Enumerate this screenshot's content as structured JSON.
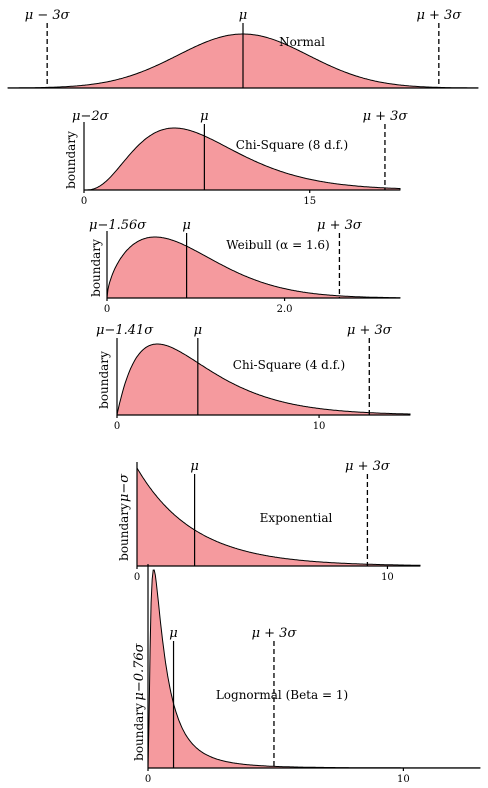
{
  "chart_data": [
    {
      "type": "area",
      "distribution": "normal",
      "title": "Normal",
      "lower_label": "μ − 3σ",
      "mean_label": "μ",
      "upper_label": "μ + 3σ",
      "side_label": "",
      "x_ticks": [],
      "colors": {
        "fill": "#f59a9e",
        "stroke": "#000000"
      }
    },
    {
      "type": "area",
      "distribution": "chisquare",
      "k": 8,
      "title": "Chi-Square (8 d.f.)",
      "lower_label": "μ−2σ",
      "mean_label": "μ",
      "upper_label": "μ + 3σ",
      "side_label": "boundary",
      "x_range": [
        0,
        21
      ],
      "x_ticks": [
        {
          "value": 0,
          "label": "0"
        },
        {
          "value": 15,
          "label": "15"
        }
      ],
      "colors": {
        "fill": "#f59a9e",
        "stroke": "#000000"
      }
    },
    {
      "type": "area",
      "distribution": "weibull",
      "shape": 1.6,
      "title": "Weibull (α = 1.6)",
      "lower_label": "μ−1.56σ",
      "mean_label": "μ",
      "upper_label": "μ + 3σ",
      "side_label": "boundary",
      "x_range": [
        0,
        3.3
      ],
      "x_ticks": [
        {
          "value": 0,
          "label": "0"
        },
        {
          "value": 2,
          "label": "2.0"
        }
      ],
      "colors": {
        "fill": "#f59a9e",
        "stroke": "#000000"
      }
    },
    {
      "type": "area",
      "distribution": "chisquare",
      "k": 4,
      "title": "Chi-Square (4 d.f.)",
      "lower_label": "μ−1.41σ",
      "mean_label": "μ",
      "upper_label": "μ + 3σ",
      "side_label": "boundary",
      "x_range": [
        0,
        14.5
      ],
      "x_ticks": [
        {
          "value": 0,
          "label": "0"
        },
        {
          "value": 10,
          "label": "10"
        }
      ],
      "colors": {
        "fill": "#f59a9e",
        "stroke": "#000000"
      }
    },
    {
      "type": "area",
      "distribution": "exponential",
      "title": "Exponential",
      "lower_label": "μ−σ",
      "mean_label": "μ",
      "upper_label": "μ + 3σ",
      "side_label": "boundary",
      "x_range": [
        0,
        11.3
      ],
      "x_ticks": [
        {
          "value": 0,
          "label": "0"
        },
        {
          "value": 10,
          "label": "10"
        }
      ],
      "colors": {
        "fill": "#f59a9e",
        "stroke": "#000000"
      }
    },
    {
      "type": "area",
      "distribution": "lognormal",
      "title": "Lognormal (Beta = 1)",
      "lower_label": "μ−0.76σ",
      "mean_label": "μ",
      "upper_label": "μ + 3σ",
      "side_label": "boundary",
      "x_range": [
        0,
        13
      ],
      "x_ticks": [
        {
          "value": 0,
          "label": "0"
        },
        {
          "value": 10,
          "label": "10"
        }
      ],
      "colors": {
        "fill": "#f59a9e",
        "stroke": "#000000"
      }
    }
  ]
}
